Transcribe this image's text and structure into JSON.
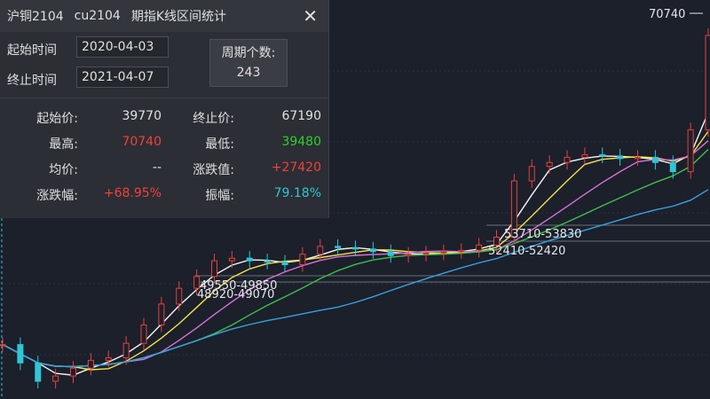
{
  "header": {
    "name": "沪铜2104",
    "code": "cu2104",
    "title": "期指K线区间统计"
  },
  "range": {
    "start_label": "起始时间",
    "start": "2020-04-03",
    "end_label": "终止时间",
    "end": "2021-04-07",
    "count_label": "周期个数:",
    "count": "243"
  },
  "stats": [
    [
      "起始价:",
      "39770",
      "终止价:",
      "67190"
    ],
    [
      "最高:",
      "70740",
      "最低:",
      "39480"
    ],
    [
      "均价:",
      "--",
      "涨跌值:",
      "+27420"
    ],
    [
      "涨跌幅:",
      "+68.95%",
      "振幅:",
      "79.18%"
    ]
  ],
  "chart": {
    "closes": [
      45400,
      44000,
      42600,
      43000,
      43600,
      44200,
      44400,
      45500,
      46900,
      48500,
      49700,
      50600,
      51800,
      52000,
      51800,
      51700,
      51500,
      52300,
      52900,
      52800,
      52700,
      52500,
      52200,
      52300,
      52400,
      52500,
      52600,
      53000,
      53600,
      57900,
      59000,
      59300,
      59700,
      59900,
      59800,
      59600,
      59700,
      59300,
      58600,
      61800,
      69000
    ],
    "annotations": [
      "70740",
      "53710-53830",
      "52410-52420",
      "49550-49850",
      "48920-49070"
    ]
  }
}
